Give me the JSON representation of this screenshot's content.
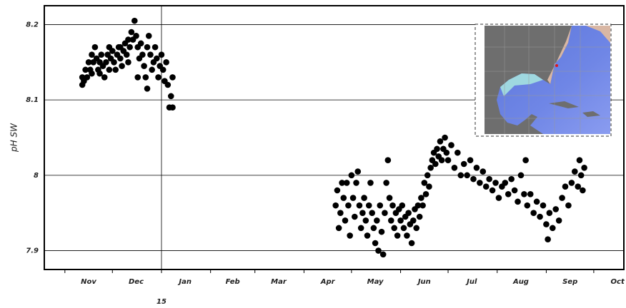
{
  "chart_data": {
    "type": "scatter",
    "y_label": "pH SW",
    "xlim": [
      -13,
      353
    ],
    "ylim": [
      7.875,
      8.225
    ],
    "yticks": [
      7.9,
      8,
      8.1,
      8.2
    ],
    "xticks": [
      {
        "value": 15,
        "label": "Nov"
      },
      {
        "value": 45,
        "label": "Dec"
      },
      {
        "value": 76,
        "label": "Jan"
      },
      {
        "value": 106,
        "label": "Feb"
      },
      {
        "value": 135,
        "label": "Mar"
      },
      {
        "value": 166,
        "label": "Apr"
      },
      {
        "value": 196,
        "label": "May"
      },
      {
        "value": 227,
        "label": "Jun"
      },
      {
        "value": 257,
        "label": "Jul"
      },
      {
        "value": 288,
        "label": "Aug"
      },
      {
        "value": 319,
        "label": "Sep"
      },
      {
        "value": 349,
        "label": "Oct"
      }
    ],
    "xminorticks": [
      0,
      30,
      61,
      92,
      120,
      151,
      181,
      212,
      242,
      273,
      304,
      334
    ],
    "year_ticks": [
      {
        "value": 61,
        "label": "15"
      }
    ],
    "grid": true,
    "series": [
      {
        "color": "#000000",
        "x": [
          11,
          11,
          12,
          13,
          14,
          15,
          16,
          17,
          18,
          19,
          20,
          21,
          22,
          23,
          24,
          25,
          26,
          27,
          28,
          29,
          30,
          31,
          32,
          33,
          34,
          35,
          36,
          37,
          38,
          39,
          40,
          41,
          42,
          43,
          44,
          45,
          46,
          47,
          48,
          49,
          50,
          51,
          52,
          53,
          54,
          55,
          56,
          57,
          58,
          59,
          60,
          61,
          62,
          63,
          64,
          65,
          66,
          67,
          68,
          68,
          52,
          46,
          40,
          35,
          28,
          22,
          17,
          171,
          172,
          173,
          174,
          175,
          176,
          177,
          178,
          179,
          180,
          181,
          182,
          183,
          184,
          185,
          186,
          187,
          188,
          189,
          190,
          191,
          192,
          193,
          194,
          195,
          196,
          197,
          198,
          199,
          200,
          201,
          202,
          203,
          204,
          205,
          206,
          207,
          208,
          209,
          210,
          211,
          212,
          213,
          214,
          215,
          216,
          217,
          218,
          219,
          220,
          221,
          222,
          223,
          224,
          225,
          226,
          227,
          228,
          229,
          230,
          231,
          232,
          233,
          234,
          235,
          236,
          237,
          238,
          239,
          240,
          241,
          242,
          244,
          246,
          248,
          250,
          252,
          254,
          256,
          258,
          260,
          262,
          264,
          266,
          268,
          270,
          272,
          274,
          276,
          278,
          280,
          282,
          284,
          286,
          288,
          290,
          291,
          292,
          294,
          296,
          298,
          300,
          302,
          304,
          305,
          306,
          308,
          310,
          312,
          314,
          316,
          318,
          320,
          322,
          324,
          325,
          326,
          327,
          328
        ],
        "values": [
          8.12,
          8.13,
          8.125,
          8.14,
          8.13,
          8.15,
          8.14,
          8.16,
          8.15,
          8.17,
          8.155,
          8.14,
          8.15,
          8.16,
          8.145,
          8.13,
          8.15,
          8.16,
          8.14,
          8.155,
          8.165,
          8.15,
          8.14,
          8.16,
          8.17,
          8.155,
          8.145,
          8.165,
          8.175,
          8.16,
          8.18,
          8.17,
          8.19,
          8.18,
          8.205,
          8.185,
          8.17,
          8.155,
          8.175,
          8.16,
          8.145,
          8.13,
          8.17,
          8.185,
          8.16,
          8.14,
          8.15,
          8.17,
          8.155,
          8.13,
          8.145,
          8.16,
          8.14,
          8.125,
          8.15,
          8.12,
          8.09,
          8.105,
          8.09,
          8.13,
          8.115,
          8.13,
          8.15,
          8.17,
          8.17,
          8.135,
          8.135,
          7.96,
          7.98,
          7.93,
          7.95,
          7.99,
          7.97,
          7.94,
          7.99,
          7.96,
          7.92,
          8.0,
          7.97,
          7.945,
          7.99,
          8.005,
          7.96,
          7.93,
          7.95,
          7.97,
          7.94,
          7.92,
          7.96,
          7.99,
          7.95,
          7.93,
          7.91,
          7.94,
          7.9,
          7.96,
          7.925,
          7.895,
          7.95,
          7.99,
          8.02,
          7.97,
          7.94,
          7.96,
          7.93,
          7.95,
          7.92,
          7.955,
          7.94,
          7.96,
          7.93,
          7.945,
          7.92,
          7.95,
          7.935,
          7.91,
          7.94,
          7.955,
          7.93,
          7.96,
          7.945,
          7.97,
          7.96,
          7.99,
          7.975,
          8.0,
          7.985,
          8.01,
          8.02,
          8.03,
          8.015,
          8.035,
          8.025,
          8.045,
          8.02,
          8.035,
          8.05,
          8.03,
          8.02,
          8.04,
          8.01,
          8.03,
          8.0,
          8.015,
          8.0,
          8.02,
          7.995,
          8.01,
          7.99,
          8.005,
          7.985,
          7.995,
          7.98,
          7.99,
          7.97,
          7.985,
          7.99,
          7.975,
          7.995,
          7.98,
          7.965,
          8.0,
          7.975,
          8.02,
          7.96,
          7.975,
          7.95,
          7.965,
          7.945,
          7.96,
          7.935,
          7.915,
          7.95,
          7.93,
          7.955,
          7.94,
          7.97,
          7.985,
          7.96,
          7.99,
          8.005,
          7.985,
          8.02,
          8.0,
          7.98,
          8.01
        ]
      }
    ]
  }
}
